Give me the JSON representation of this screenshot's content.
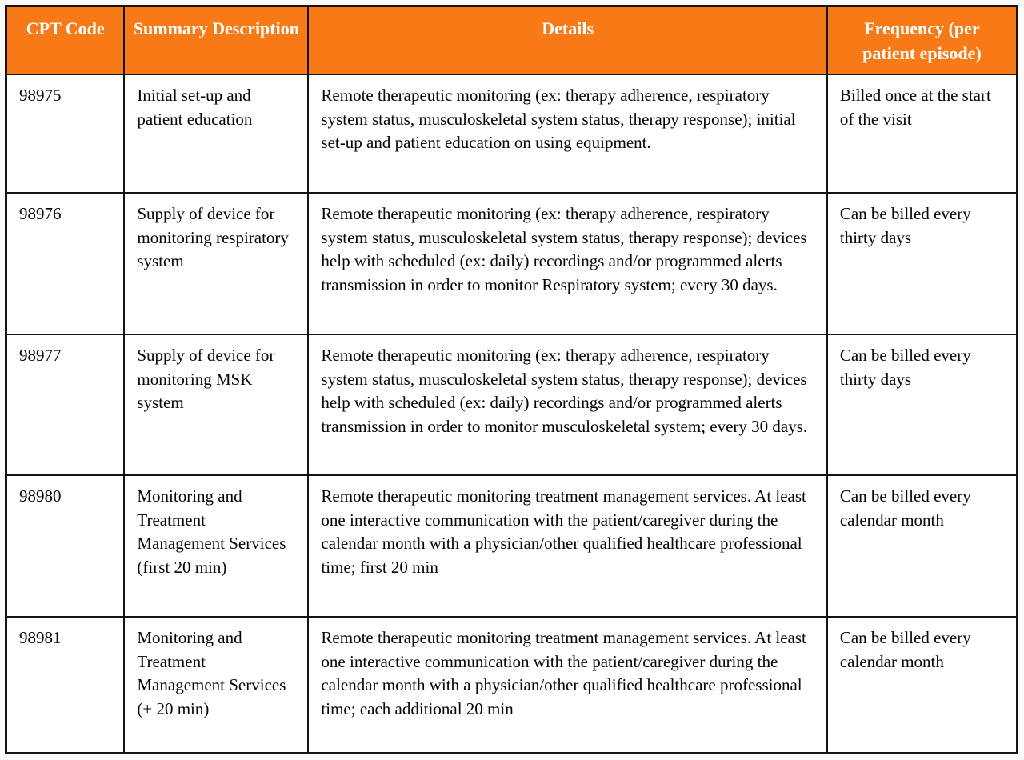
{
  "table": {
    "title_semantic": "CPT codes for remote therapeutic monitoring billing",
    "colors": {
      "header_background": "#f87a17",
      "header_text": "#ffffff",
      "border": "#171310",
      "body_text": "#030303",
      "page_background": "#fbfafa"
    },
    "columns": [
      {
        "label": "CPT Code"
      },
      {
        "label": "Summary Description"
      },
      {
        "label": "Details"
      },
      {
        "label": "Frequency (per patient episode)"
      }
    ],
    "rows": [
      {
        "cpt_code": "98975",
        "summary": "Initial set-up and patient education",
        "details": "Remote therapeutic monitoring (ex: therapy adherence, respiratory system status, musculoskeletal system status, therapy response); initial set-up and patient education on using equipment.",
        "frequency": "Billed once at the start of the visit"
      },
      {
        "cpt_code": "98976",
        "summary": "Supply of device for monitoring respiratory system",
        "details": "Remote therapeutic monitoring (ex: therapy adherence, respiratory system status, musculoskeletal system status, therapy response); devices help with scheduled (ex: daily) recordings and/or programmed alerts transmission in order to monitor Respiratory system; every 30 days.",
        "frequency": "Can be billed every thirty days"
      },
      {
        "cpt_code": "98977",
        "summary": "Supply of device for monitoring MSK system",
        "details": "Remote therapeutic monitoring (ex: therapy adherence, respiratory system status, musculoskeletal system status, therapy response); devices help with scheduled (ex: daily) recordings and/or programmed alerts transmission in order to monitor musculoskeletal system; every 30 days.",
        "frequency": "Can be billed every thirty days"
      },
      {
        "cpt_code": "98980",
        "summary": "Monitoring and Treatment Management Services (first 20 min)",
        "details": "Remote therapeutic monitoring treatment management services. At least one interactive communication with the patient/caregiver during the calendar month with a physician/other qualified healthcare professional time; first 20 min",
        "frequency": "Can be billed every calendar month"
      },
      {
        "cpt_code": "98981",
        "summary": "Monitoring and Treatment Management Services (+ 20 min)",
        "details": "Remote therapeutic monitoring treatment management services. At least one interactive communication with the patient/caregiver during the calendar month with a physician/other qualified healthcare professional time; each additional 20 min",
        "frequency": "Can be billed every calendar month"
      }
    ]
  }
}
